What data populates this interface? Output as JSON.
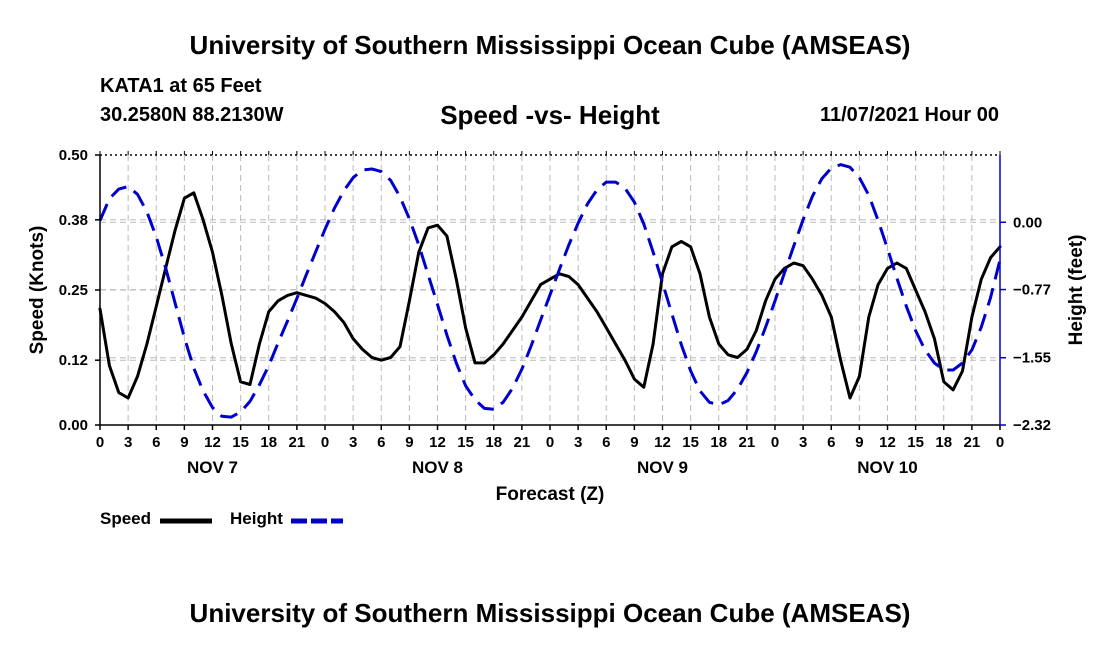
{
  "header": {
    "title": "University of Southern Mississippi Ocean Cube (AMSEAS)",
    "station": "KATA1 at 65 Feet",
    "coordinates": "30.2580N  88.2130W",
    "subtitle": "Speed -vs- Height",
    "run_time": "11/07/2021 Hour 00"
  },
  "footer": {
    "title": "University of Southern Mississippi Ocean Cube (AMSEAS)"
  },
  "legend": {
    "speed_label": "Speed",
    "height_label": "Height"
  },
  "colors": {
    "speed": "#000000",
    "height": "#0000cc",
    "grid": "#bbbbbb"
  },
  "chart_data": {
    "type": "line",
    "title": "Speed -vs- Height",
    "xlabel": "Forecast (Z)",
    "ylabel": "Speed (Knots)",
    "y2label": "Height (feet)",
    "x_unit": "forecast hours from 11/07/2021 00Z",
    "xlim": [
      0,
      96
    ],
    "ylim": [
      0,
      0.5
    ],
    "y2lim": [
      -2.32,
      0.77
    ],
    "x_ticks": [
      0,
      3,
      6,
      9,
      12,
      15,
      18,
      21,
      24,
      27,
      30,
      33,
      36,
      39,
      42,
      45,
      48,
      51,
      54,
      57,
      60,
      63,
      66,
      69,
      72,
      75,
      78,
      81,
      84,
      87,
      90,
      93,
      96
    ],
    "x_tick_labels": [
      "0",
      "3",
      "6",
      "9",
      "12",
      "15",
      "18",
      "21",
      "0",
      "3",
      "6",
      "9",
      "12",
      "15",
      "18",
      "21",
      "0",
      "3",
      "6",
      "9",
      "12",
      "15",
      "18",
      "21",
      "0",
      "3",
      "6",
      "9",
      "12",
      "15",
      "18",
      "21",
      "0"
    ],
    "day_labels": [
      {
        "label": "NOV 7",
        "x": 12
      },
      {
        "label": "NOV 8",
        "x": 36
      },
      {
        "label": "NOV 9",
        "x": 60
      },
      {
        "label": "NOV 10",
        "x": 84
      }
    ],
    "y_ticks": [
      0.0,
      0.12,
      0.25,
      0.38,
      0.5
    ],
    "y_tick_labels": [
      "0.00",
      "0.12",
      "0.25",
      "0.38",
      "0.50"
    ],
    "y2_ticks": [
      -2.32,
      -1.55,
      -0.77,
      0.0
    ],
    "y2_tick_labels": [
      "−2.32",
      "−1.55",
      "−0.77",
      "0.00"
    ],
    "grid": true,
    "series": [
      {
        "name": "Speed",
        "axis": "left",
        "style": "solid",
        "x": [
          0,
          1,
          2,
          3,
          4,
          5,
          6,
          7,
          8,
          9,
          10,
          11,
          12,
          13,
          14,
          15,
          16,
          17,
          18,
          19,
          20,
          21,
          22,
          23,
          24,
          25,
          26,
          27,
          28,
          29,
          30,
          31,
          32,
          33,
          34,
          35,
          36,
          37,
          38,
          39,
          40,
          41,
          42,
          43,
          44,
          45,
          46,
          47,
          48,
          49,
          50,
          51,
          52,
          53,
          54,
          55,
          56,
          57,
          58,
          59,
          60,
          61,
          62,
          63,
          64,
          65,
          66,
          67,
          68,
          69,
          70,
          71,
          72,
          73,
          74,
          75,
          76,
          77,
          78,
          79,
          80,
          81,
          82,
          83,
          84,
          85,
          86,
          87,
          88,
          89,
          90,
          91,
          92,
          93,
          94,
          95,
          96
        ],
        "values": [
          0.215,
          0.11,
          0.06,
          0.05,
          0.09,
          0.15,
          0.22,
          0.29,
          0.36,
          0.42,
          0.43,
          0.38,
          0.32,
          0.24,
          0.15,
          0.08,
          0.075,
          0.15,
          0.21,
          0.23,
          0.24,
          0.245,
          0.24,
          0.235,
          0.225,
          0.21,
          0.19,
          0.16,
          0.14,
          0.125,
          0.12,
          0.125,
          0.145,
          0.23,
          0.32,
          0.365,
          0.37,
          0.35,
          0.27,
          0.18,
          0.115,
          0.115,
          0.13,
          0.15,
          0.175,
          0.2,
          0.23,
          0.26,
          0.27,
          0.28,
          0.275,
          0.26,
          0.235,
          0.21,
          0.18,
          0.15,
          0.12,
          0.085,
          0.07,
          0.15,
          0.28,
          0.33,
          0.34,
          0.33,
          0.28,
          0.2,
          0.15,
          0.13,
          0.125,
          0.14,
          0.175,
          0.23,
          0.27,
          0.29,
          0.3,
          0.295,
          0.27,
          0.24,
          0.2,
          0.12,
          0.05,
          0.09,
          0.2,
          0.26,
          0.29,
          0.3,
          0.29,
          0.25,
          0.21,
          0.16,
          0.08,
          0.065,
          0.1,
          0.2,
          0.27,
          0.31,
          0.33
        ]
      },
      {
        "name": "Height",
        "axis": "right",
        "style": "dashed",
        "x": [
          0,
          1,
          2,
          3,
          4,
          5,
          6,
          7,
          8,
          9,
          10,
          11,
          12,
          13,
          14,
          15,
          16,
          17,
          18,
          19,
          20,
          21,
          22,
          23,
          24,
          25,
          26,
          27,
          28,
          29,
          30,
          31,
          32,
          33,
          34,
          35,
          36,
          37,
          38,
          39,
          40,
          41,
          42,
          43,
          44,
          45,
          46,
          47,
          48,
          49,
          50,
          51,
          52,
          53,
          54,
          55,
          56,
          57,
          58,
          59,
          60,
          61,
          62,
          63,
          64,
          65,
          66,
          67,
          68,
          69,
          70,
          71,
          72,
          73,
          74,
          75,
          76,
          77,
          78,
          79,
          80,
          81,
          82,
          83,
          84,
          85,
          86,
          87,
          88,
          89,
          90,
          91,
          92,
          93,
          94,
          95,
          96
        ],
        "values": [
          0.02,
          0.27,
          0.38,
          0.41,
          0.32,
          0.12,
          -0.17,
          -0.52,
          -0.92,
          -1.32,
          -1.67,
          -1.93,
          -2.12,
          -2.22,
          -2.23,
          -2.17,
          -2.05,
          -1.86,
          -1.64,
          -1.38,
          -1.13,
          -0.87,
          -0.6,
          -0.34,
          -0.08,
          0.16,
          0.36,
          0.51,
          0.6,
          0.61,
          0.58,
          0.48,
          0.29,
          0.04,
          -0.26,
          -0.6,
          -0.94,
          -1.29,
          -1.61,
          -1.87,
          -2.03,
          -2.13,
          -2.14,
          -2.06,
          -1.9,
          -1.68,
          -1.41,
          -1.12,
          -0.83,
          -0.54,
          -0.26,
          -0.01,
          0.21,
          0.37,
          0.46,
          0.46,
          0.39,
          0.23,
          -0.02,
          -0.34,
          -0.69,
          -1.05,
          -1.4,
          -1.7,
          -1.93,
          -2.06,
          -2.09,
          -2.04,
          -1.91,
          -1.72,
          -1.48,
          -1.2,
          -0.9,
          -0.58,
          -0.27,
          0.03,
          0.3,
          0.5,
          0.62,
          0.66,
          0.63,
          0.51,
          0.31,
          0.02,
          -0.3,
          -0.64,
          -0.96,
          -1.24,
          -1.46,
          -1.61,
          -1.69,
          -1.69,
          -1.61,
          -1.46,
          -1.2,
          -0.86,
          -0.43
        ]
      }
    ]
  }
}
